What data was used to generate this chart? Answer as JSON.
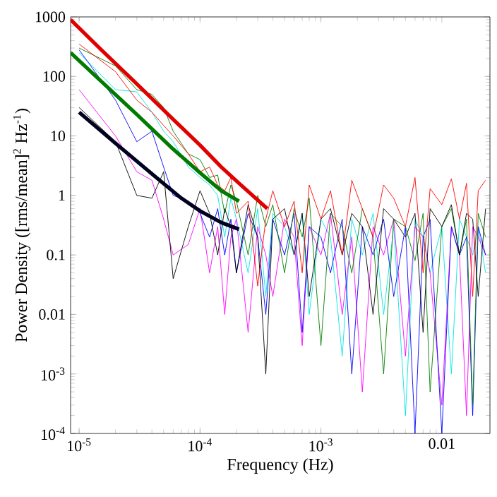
{
  "chart_data": {
    "type": "line",
    "xlabel": "Frequency (Hz)",
    "ylabel": "Power Density ([rms/mean]$^{2}$ Hz$^{-1}$)",
    "log": "xy",
    "grid": false,
    "marker": "none",
    "line_style": "solid",
    "xlim": [
      8.5e-06,
      0.025
    ],
    "ylim": [
      0.0001,
      1000
    ],
    "xticks": [
      {
        "value": 1e-05,
        "label": "10$^{-5}$"
      },
      {
        "value": 0.0001,
        "label": "10$^{-4}$"
      },
      {
        "value": 0.001,
        "label": "10$^{-3}$"
      },
      0.01
    ],
    "yticks": [
      {
        "value": 0.0001,
        "label": "10$^{-4}$"
      },
      {
        "value": 0.001,
        "label": "10$^{-3}$"
      },
      0.01,
      0.1,
      1,
      10,
      100,
      1000
    ],
    "x": [
      1e-05,
      2e-05,
      3e-05,
      4e-05,
      5e-05,
      6e-05,
      8e-05,
      0.0001,
      0.00012,
      0.00014,
      0.00016,
      0.00018,
      0.0002,
      0.00025,
      0.0003,
      0.00035,
      0.0004,
      0.0005,
      0.0006,
      0.0007,
      0.0008,
      0.001,
      0.0012,
      0.0015,
      0.0018,
      0.0022,
      0.0027,
      0.0033,
      0.004,
      0.005,
      0.006,
      0.007,
      0.008,
      0.01,
      0.012,
      0.014,
      0.016,
      0.018,
      0.02,
      0.023
    ],
    "series": [
      {
        "color": "#00e5e5",
        "values": [
          250,
          60,
          55,
          25,
          12,
          8,
          3,
          2,
          1.5,
          1,
          0.2,
          0.9,
          0.4,
          0.05,
          0.6,
          0.02,
          0.5,
          0.3,
          0.1,
          0.5,
          0.01,
          0.4,
          0.2,
          0.002,
          0.4,
          0.1,
          0.5,
          0.01,
          0.3,
          0.0002,
          0.4,
          0.2,
          0.05,
          0.3,
          0.001,
          0.4,
          0.2,
          0.1,
          0.3,
          0.05
        ]
      },
      {
        "color": "#ff00ff",
        "values": [
          60,
          10,
          2.5,
          1.8,
          0.4,
          0.1,
          0.15,
          0.6,
          0.05,
          0.3,
          0.01,
          0.2,
          0.4,
          0.005,
          0.3,
          0.1,
          0.02,
          0.4,
          0.2,
          0.003,
          0.3,
          0.1,
          0.5,
          0.01,
          0.2,
          0.0005,
          0.3,
          0.1,
          0.4,
          0.002,
          0.3,
          0.2,
          0.05,
          0.0003,
          0.3,
          0.1,
          0.0002,
          0.3,
          0.2,
          0.1
        ]
      },
      {
        "color": "#0000ff",
        "values": [
          280,
          40,
          8,
          12,
          3,
          1,
          0.8,
          0.5,
          0.2,
          0.6,
          0.1,
          0.4,
          0.05,
          0.5,
          0.2,
          0.01,
          0.4,
          0.1,
          0.5,
          0.005,
          0.3,
          0.2,
          0.05,
          0.4,
          0.001,
          0.3,
          0.1,
          0.4,
          0.02,
          0.3,
          0.0001,
          0.2,
          0.4,
          0.0001,
          0.3,
          0.1,
          0.2,
          0.0002,
          0.3,
          0.1
        ]
      },
      {
        "color": "#008000",
        "values": [
          300,
          150,
          60,
          50,
          30,
          12,
          5,
          4,
          2,
          2.2,
          0.5,
          1.5,
          0.8,
          0.1,
          1,
          0.3,
          0.7,
          0.05,
          0.6,
          0.2,
          0.9,
          0.003,
          0.5,
          0.3,
          0.05,
          0.6,
          0.2,
          0.001,
          0.4,
          0.3,
          0.08,
          0.5,
          0.0005,
          0.3,
          0.6,
          0.1,
          0.4,
          0.0003,
          0.5,
          0.2
        ]
      },
      {
        "color": "#000000",
        "values": [
          30,
          8,
          1,
          0.9,
          2.5,
          0.04,
          0.3,
          1.2,
          0.5,
          0.1,
          0.6,
          0.3,
          0.05,
          0.7,
          0.2,
          0.001,
          0.4,
          0.6,
          0.1,
          0.5,
          0.02,
          0.4,
          0.6,
          0.1,
          0.5,
          0.3,
          0.01,
          0.6,
          0.4,
          0.2,
          0.5,
          0.005,
          0.6,
          0.3,
          0.7,
          0.1,
          0.5,
          0.4,
          0.02,
          0.6
        ]
      },
      {
        "color": "#ff0000",
        "values": [
          350,
          120,
          40,
          25,
          15,
          10,
          5,
          2.5,
          3,
          1.5,
          1.2,
          2,
          0.5,
          0.8,
          0.03,
          0.4,
          1.2,
          0.3,
          0.8,
          0.05,
          1.5,
          0.4,
          1.2,
          0.1,
          1.8,
          0.6,
          0.2,
          1.5,
          0.9,
          0.3,
          2,
          0.05,
          1.3,
          0.7,
          1.9,
          0.4,
          1.6,
          0.02,
          1.2,
          1.8
        ]
      },
      {
        "color": "#e00000",
        "x": [
          8.5e-06,
          1.5e-05,
          3e-05,
          6e-05,
          0.0001,
          0.00015,
          0.00021,
          0.00036
        ],
        "values": [
          900,
          290,
          75,
          19,
          7,
          3,
          1.6,
          0.6
        ]
      },
      {
        "color": "#007a00",
        "x": [
          8.5e-06,
          1.5e-05,
          3e-05,
          6e-05,
          0.0001,
          0.00015,
          0.00021
        ],
        "values": [
          250,
          85,
          23,
          6,
          2.4,
          1.2,
          0.8
        ]
      },
      {
        "color": "#000020",
        "x": [
          1e-05,
          2e-05,
          4e-05,
          7e-05,
          0.0001,
          0.00015,
          0.00021
        ],
        "values": [
          25,
          7.5,
          2.3,
          0.9,
          0.55,
          0.35,
          0.27
        ]
      }
    ]
  }
}
